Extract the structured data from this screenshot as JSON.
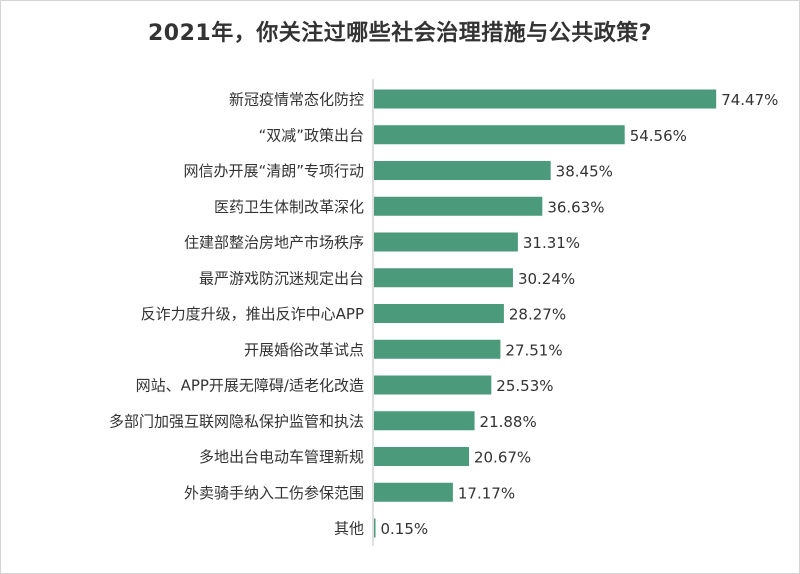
{
  "chart_data": {
    "type": "bar",
    "orientation": "horizontal",
    "title": "2021年，你关注过哪些社会治理措施与公共政策?",
    "categories": [
      "新冠疫情常态化防控",
      "“双减”政策出台",
      "网信办开展“清朗”专项行动",
      "医药卫生体制改革深化",
      "住建部整治房地产市场秩序",
      "最严游戏防沉迷规定出台",
      "反诈力度升级，推出反诈中心APP",
      "开展婚俗改革试点",
      "网站、APP开展无障碍/适老化改造",
      "多部门加强互联网隐私保护监管和执法",
      "多地出台电动车管理新规",
      "外卖骑手纳入工伤参保范围",
      "其他"
    ],
    "values": [
      74.47,
      54.56,
      38.45,
      36.63,
      31.31,
      30.24,
      28.27,
      27.51,
      25.53,
      21.88,
      20.67,
      17.17,
      0.15
    ],
    "value_labels": [
      "74.47%",
      "54.56%",
      "38.45%",
      "36.63%",
      "31.31%",
      "30.24%",
      "28.27%",
      "27.51%",
      "25.53%",
      "21.88%",
      "20.67%",
      "17.17%",
      "0.15%"
    ],
    "xlim": [
      0,
      100
    ],
    "grid": false,
    "bar_color": "#4a9a7b",
    "axis_color": "#bfbfbf"
  }
}
